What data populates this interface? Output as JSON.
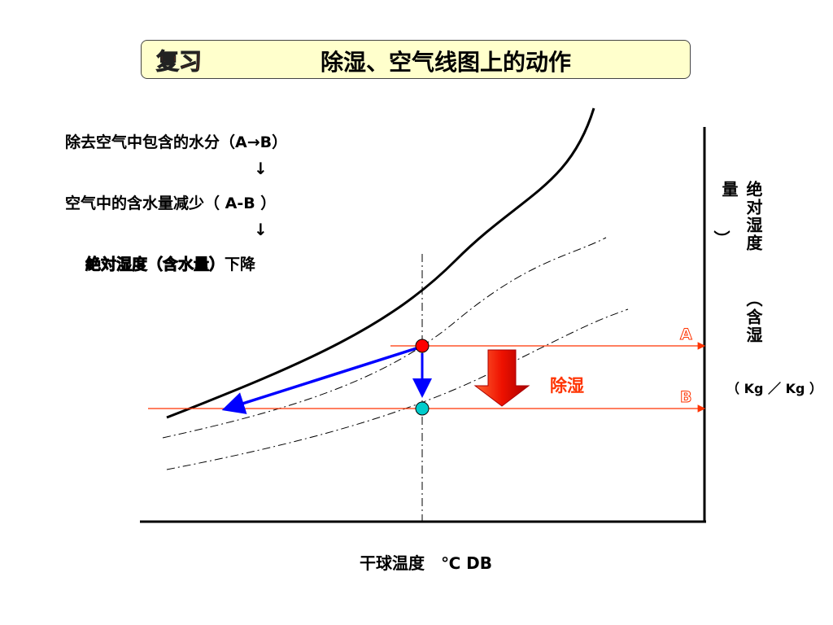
{
  "title": {
    "tag": "复习",
    "main": "除湿、空气线图上的动作"
  },
  "steps": {
    "step1": "除去空气中包含的水分（A→B）",
    "arrow1": "↓",
    "step2": "空气中的含水量减少（ A-B ）",
    "arrow2": "↓",
    "step3_outline": "絶対湿度（含水量）",
    "step3_bold": "下降"
  },
  "y_axis": {
    "col1": "绝对湿度",
    "col2": "量",
    "col3_a": "（含湿",
    "col3_b": "）",
    "unit": "（ Kg ／ Kg ）"
  },
  "x_axis": {
    "label": "干球温度　℃ DB"
  },
  "points": {
    "a": "A",
    "b": "B"
  },
  "process": {
    "label": "除湿"
  },
  "colors": {
    "accent": "#ff3300",
    "blue": "#0000ff",
    "point_a": "#ff0000",
    "point_b": "#00cccc"
  }
}
